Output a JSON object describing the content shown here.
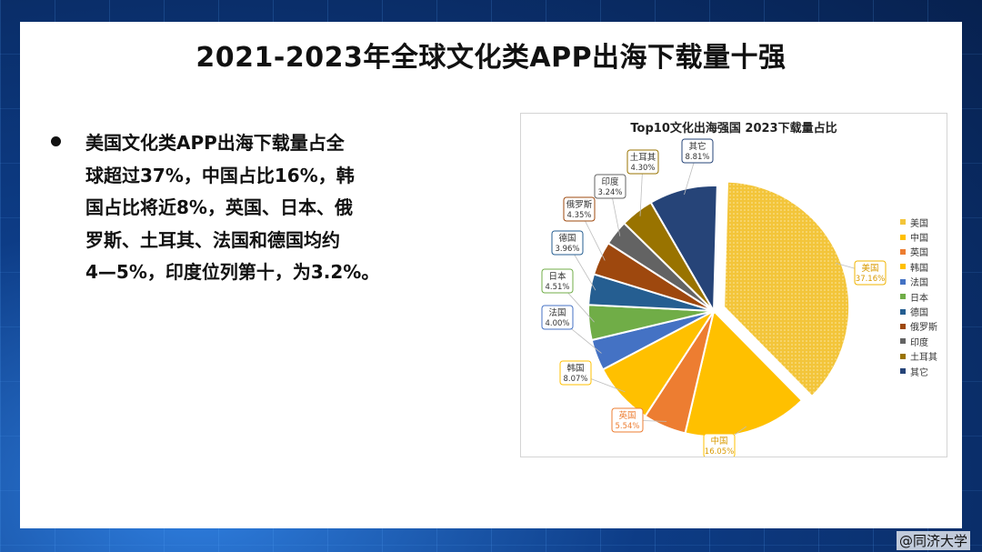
{
  "slide": {
    "title": "2021-2023年全球文化类APP出海下载量十强",
    "bullet_lines": [
      "美国文化类APP出海下载量占全",
      "球超过37%，中国占比16%，韩",
      "国占比将近8%，英国、日本、俄",
      "罗斯、土耳其、法国和德国均约",
      "4—5%，印度位列第十，为3.2%。"
    ]
  },
  "watermark": "@同济大学",
  "chart_data": {
    "type": "pie",
    "title": "Top10文化出海强国 2023下载量占比",
    "legend_placement": "right",
    "slices": [
      {
        "name": "美国",
        "value": 37.16,
        "label": "37.16%",
        "color": "#f3c53a",
        "exploded": true,
        "pattern": "dotted"
      },
      {
        "name": "中国",
        "value": 16.05,
        "label": "16.05%",
        "color": "#ffc000"
      },
      {
        "name": "英国",
        "value": 5.54,
        "label": "5.54%",
        "color": "#ed7d31"
      },
      {
        "name": "韩国",
        "value": 8.07,
        "label": "8.07%",
        "color": "#ffc000"
      },
      {
        "name": "法国",
        "value": 4.0,
        "label": "4.00%",
        "color": "#4472c4"
      },
      {
        "name": "日本",
        "value": 4.51,
        "label": "4.51%",
        "color": "#70ad47"
      },
      {
        "name": "德国",
        "value": 3.96,
        "label": "3.96%",
        "color": "#255e91"
      },
      {
        "name": "俄罗斯",
        "value": 4.35,
        "label": "4.35%",
        "color": "#9e480e"
      },
      {
        "name": "印度",
        "value": 3.24,
        "label": "3.24%",
        "color": "#636363"
      },
      {
        "name": "土耳其",
        "value": 4.3,
        "label": "4.30%",
        "color": "#997300"
      },
      {
        "name": "其它",
        "value": 8.81,
        "label": "8.81%",
        "color": "#264478"
      }
    ]
  }
}
